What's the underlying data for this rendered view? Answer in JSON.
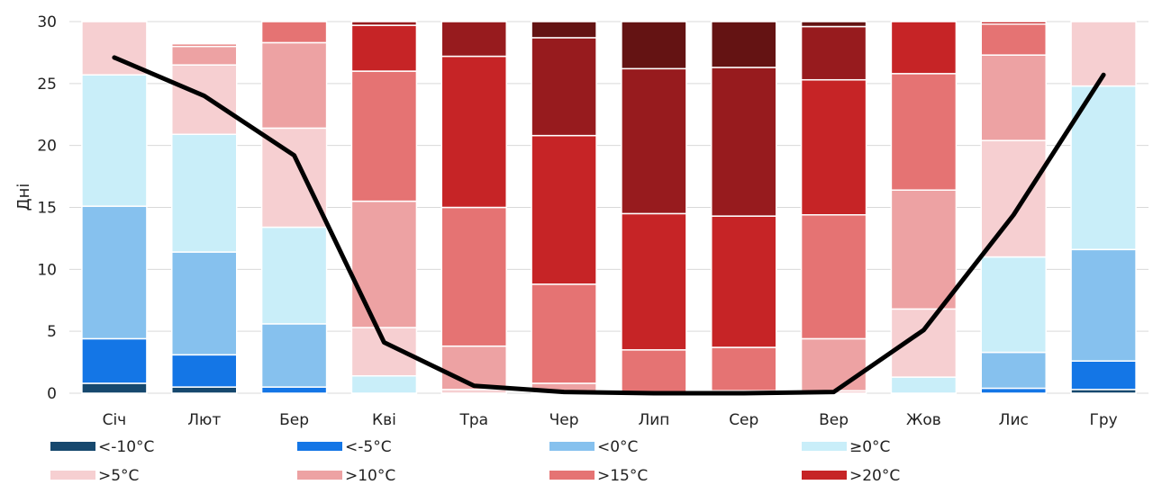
{
  "chart_data": {
    "type": "bar",
    "stacked": true,
    "title": "",
    "xlabel": "",
    "ylabel": "Дні",
    "ylim": [
      0,
      30
    ],
    "yticks": [
      0,
      5,
      10,
      15,
      20,
      25,
      30
    ],
    "grid": true,
    "legend_position": "bottom",
    "categories": [
      "Січ",
      "Лют",
      "Бер",
      "Кві",
      "Тра",
      "Чер",
      "Лип",
      "Сер",
      "Вер",
      "Жов",
      "Лис",
      "Гру"
    ],
    "series": [
      {
        "name": "<-10°C",
        "color": "#16486e",
        "values": [
          0.8,
          0.5,
          0.0,
          0.0,
          0.0,
          0.0,
          0.0,
          0.0,
          0.0,
          0.0,
          0.0,
          0.3
        ]
      },
      {
        "name": "<-5°C",
        "color": "#1476e6",
        "values": [
          3.6,
          2.6,
          0.5,
          0.0,
          0.0,
          0.0,
          0.0,
          0.0,
          0.0,
          0.0,
          0.4,
          2.3
        ]
      },
      {
        "name": "<0°C",
        "color": "#86c1ee",
        "values": [
          10.7,
          8.3,
          5.1,
          0.0,
          0.0,
          0.0,
          0.0,
          0.0,
          0.0,
          0.0,
          2.9,
          9.0
        ]
      },
      {
        "name": "≥0°C",
        "color": "#c9eef9",
        "values": [
          10.6,
          9.5,
          7.8,
          1.4,
          0.0,
          0.0,
          0.0,
          0.0,
          0.0,
          1.3,
          7.7,
          13.2
        ]
      },
      {
        "name": ">5°C",
        "color": "#f6cfd1",
        "values": [
          4.3,
          5.6,
          8.0,
          3.9,
          0.3,
          0.1,
          0.0,
          0.0,
          0.2,
          5.5,
          9.4,
          5.2
        ]
      },
      {
        "name": ">10°C",
        "color": "#eda2a3",
        "values": [
          0.0,
          1.5,
          6.9,
          10.2,
          3.5,
          0.7,
          0.0,
          0.2,
          4.2,
          9.6,
          6.9,
          0.0
        ]
      },
      {
        "name": ">15°C",
        "color": "#e57373",
        "values": [
          0.0,
          0.2,
          1.7,
          10.5,
          11.2,
          8.0,
          3.5,
          3.5,
          10.0,
          9.4,
          2.5,
          0.0
        ]
      },
      {
        "name": ">20°C",
        "color": "#c62426",
        "values": [
          0.0,
          0.0,
          0.0,
          3.7,
          12.2,
          12.0,
          11.0,
          10.6,
          10.9,
          4.2,
          0.2,
          0.0
        ]
      },
      {
        "name": "",
        "color": "#971b1e",
        "values": [
          0.0,
          0.0,
          0.0,
          0.3,
          2.8,
          7.9,
          11.7,
          12.0,
          4.3,
          0.0,
          0.0,
          0.0
        ]
      },
      {
        "name": "",
        "color": "#641313",
        "values": [
          0.0,
          0.0,
          0.0,
          0.0,
          0.0,
          1.3,
          3.8,
          3.7,
          0.4,
          0.0,
          0.0,
          0.0
        ]
      }
    ],
    "line": {
      "color": "#000000",
      "values": [
        27.1,
        24.0,
        19.2,
        4.1,
        0.6,
        0.1,
        0.0,
        0.0,
        0.1,
        5.1,
        14.4,
        25.7
      ]
    }
  }
}
